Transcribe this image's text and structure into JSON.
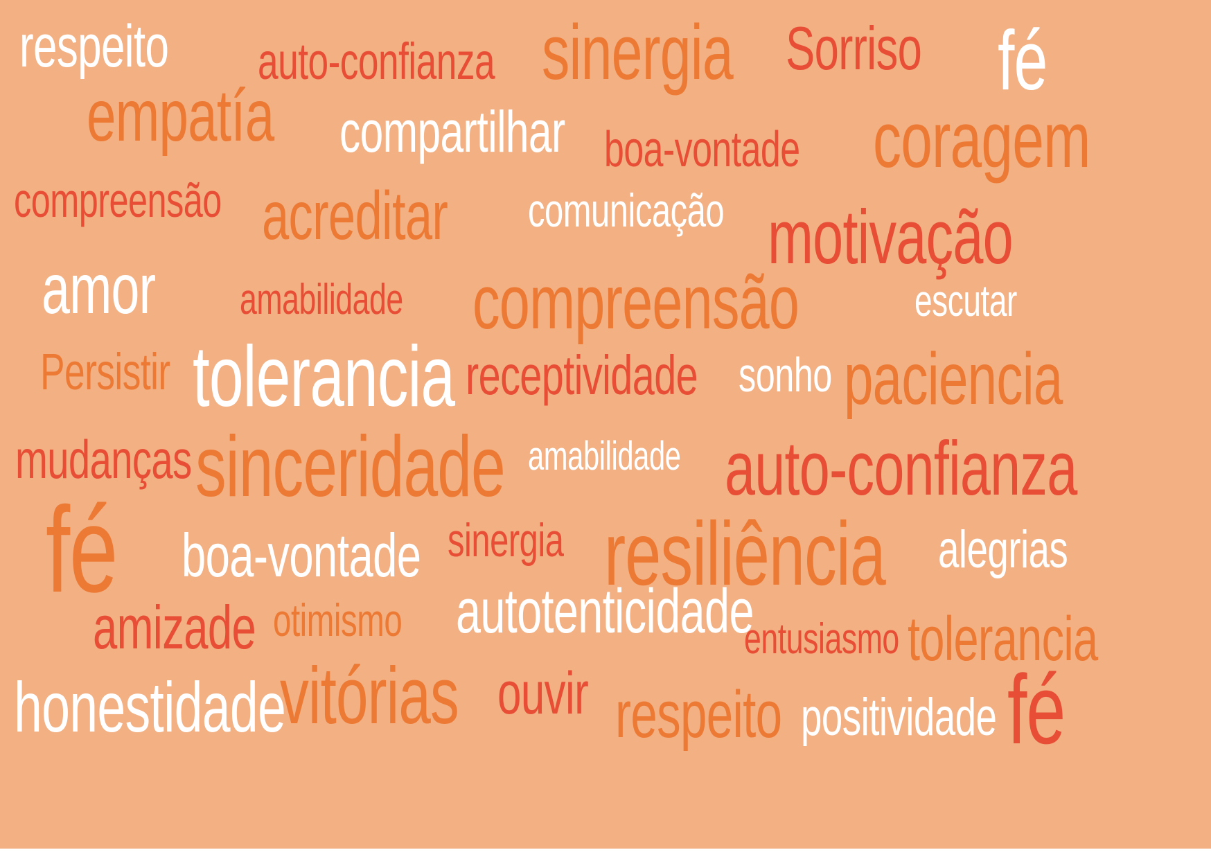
{
  "words": [
    {
      "text": "respeito",
      "tone": "white"
    },
    {
      "text": "auto-confianza",
      "tone": "red"
    },
    {
      "text": "sinergia",
      "tone": "orange"
    },
    {
      "text": "Sorriso",
      "tone": "red"
    },
    {
      "text": "fé",
      "tone": "white"
    },
    {
      "text": "empatía",
      "tone": "orange"
    },
    {
      "text": "compartilhar",
      "tone": "white"
    },
    {
      "text": "boa-vontade",
      "tone": "red"
    },
    {
      "text": "coragem",
      "tone": "orange"
    },
    {
      "text": "compreensão",
      "tone": "red"
    },
    {
      "text": "acreditar",
      "tone": "orange"
    },
    {
      "text": "comunicação",
      "tone": "white"
    },
    {
      "text": "motivação",
      "tone": "red"
    },
    {
      "text": "amor",
      "tone": "white"
    },
    {
      "text": "amabilidade",
      "tone": "red"
    },
    {
      "text": "compreensão",
      "tone": "orange"
    },
    {
      "text": "escutar",
      "tone": "white"
    },
    {
      "text": "Persistir",
      "tone": "orange"
    },
    {
      "text": "tolerancia",
      "tone": "white"
    },
    {
      "text": "receptividade",
      "tone": "red"
    },
    {
      "text": "sonho",
      "tone": "white"
    },
    {
      "text": "paciencia",
      "tone": "orange"
    },
    {
      "text": "mudanças",
      "tone": "red"
    },
    {
      "text": "sinceridade",
      "tone": "orange"
    },
    {
      "text": "amabilidade",
      "tone": "white"
    },
    {
      "text": "auto-confianza",
      "tone": "red"
    },
    {
      "text": "fé",
      "tone": "orange"
    },
    {
      "text": "boa-vontade",
      "tone": "white"
    },
    {
      "text": "sinergia",
      "tone": "red"
    },
    {
      "text": "resiliência",
      "tone": "orange"
    },
    {
      "text": "alegrias",
      "tone": "white"
    },
    {
      "text": "amizade",
      "tone": "red"
    },
    {
      "text": "otimismo",
      "tone": "orange"
    },
    {
      "text": "autotenticidade",
      "tone": "white"
    },
    {
      "text": "entusiasmo",
      "tone": "red"
    },
    {
      "text": "tolerancia",
      "tone": "orange"
    },
    {
      "text": "honestidade",
      "tone": "white"
    },
    {
      "text": "vitórias",
      "tone": "orange"
    },
    {
      "text": "ouvir",
      "tone": "red"
    },
    {
      "text": "respeito",
      "tone": "orange"
    },
    {
      "text": "positividade",
      "tone": "white"
    },
    {
      "text": "fé",
      "tone": "red"
    }
  ],
  "colors": {
    "background": "#f2b083",
    "white": "#ffffff",
    "orange": "#ec7a35",
    "red": "#e74e35"
  }
}
